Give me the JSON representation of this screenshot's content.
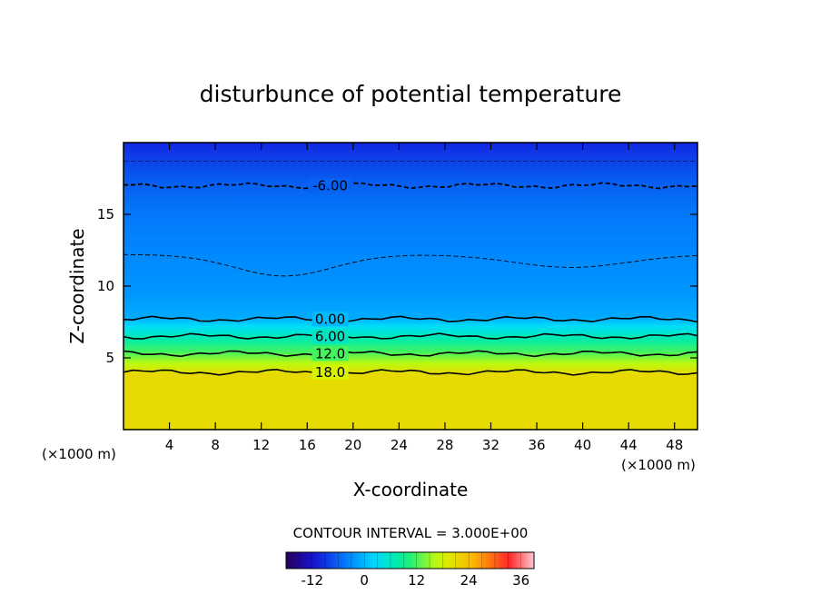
{
  "chart_data": {
    "type": "heatmap",
    "title": "disturbunce of potential temperature",
    "xlabel": "X-coordinate",
    "ylabel": "Z-coordinate",
    "x_unit_left": "(×1000 m)",
    "x_unit_right": "(×1000 m)",
    "xlim": [
      0,
      50
    ],
    "ylim": [
      0,
      20
    ],
    "xticks": [
      4,
      8,
      12,
      16,
      20,
      24,
      28,
      32,
      36,
      40,
      44,
      48
    ],
    "yticks": [
      5,
      10,
      15
    ],
    "field_profile": [
      {
        "z": 0,
        "value": 21
      },
      {
        "z": 3.9,
        "value": 21
      },
      {
        "z": 4.6,
        "value": 16.5
      },
      {
        "z": 5.4,
        "value": 12
      },
      {
        "z": 6.3,
        "value": 7.5
      },
      {
        "z": 7.2,
        "value": 3
      },
      {
        "z": 7.8,
        "value": -1
      },
      {
        "z": 9.5,
        "value": -2.5
      },
      {
        "z": 12.5,
        "value": -3.5
      },
      {
        "z": 15,
        "value": -4.5
      },
      {
        "z": 17,
        "value": -6
      },
      {
        "z": 18.7,
        "value": -8
      },
      {
        "z": 20,
        "value": -10
      }
    ],
    "contours": [
      {
        "label": "18.0",
        "level": 18,
        "z": 4.0,
        "style": "solid"
      },
      {
        "label": "12.0",
        "level": 12,
        "z": 5.3,
        "style": "solid"
      },
      {
        "label": "6.00",
        "level": 6,
        "z": 6.5,
        "style": "solid"
      },
      {
        "label": "0.00",
        "level": 0,
        "z": 7.7,
        "style": "solid"
      },
      {
        "label": "-6.00",
        "level": -6,
        "z": 17.0,
        "style": "dashed"
      }
    ],
    "contour_interval_text": "CONTOUR INTERVAL = 3.000E+00",
    "colorbar": {
      "range": [
        -18,
        39
      ],
      "ticks": [
        "-12",
        "0",
        "12",
        "24",
        "36"
      ],
      "tick_values": [
        -12,
        0,
        12,
        24,
        36
      ]
    }
  }
}
